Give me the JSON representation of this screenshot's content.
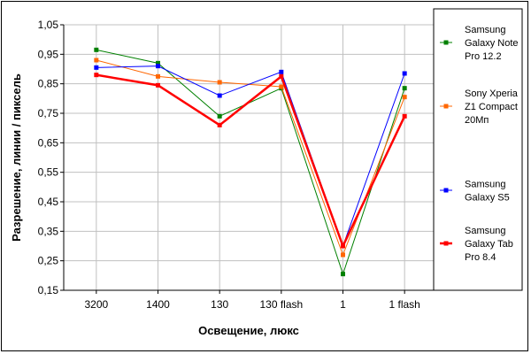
{
  "chart_data": {
    "type": "line",
    "title": "",
    "xlabel": "Освещение, люкс",
    "ylabel": "Разрешение, линии / пиксель",
    "categories": [
      "3200",
      "1400",
      "130",
      "130 flash",
      "1",
      "1 flash"
    ],
    "ylim": [
      0.15,
      1.05
    ],
    "yticks": [
      "0,15",
      "0,25",
      "0,35",
      "0,45",
      "0,55",
      "0,65",
      "0,75",
      "0,85",
      "0,95",
      "1,05"
    ],
    "grid": true,
    "legend_position": "right",
    "series": [
      {
        "name": "Samsung Galaxy Note Pro 12.2",
        "legend_lines": [
          "Samsung",
          "Galaxy Note",
          "Pro 12.2"
        ],
        "color": "#008000",
        "values": [
          0.965,
          0.92,
          0.74,
          0.835,
          0.205,
          0.835
        ]
      },
      {
        "name": "Sony Xperia Z1 Compact 20Мп",
        "legend_lines": [
          "Sony Xperia",
          "Z1 Compact",
          "20Мп"
        ],
        "color": "#FF6600",
        "values": [
          0.93,
          0.875,
          0.855,
          0.84,
          0.27,
          0.805
        ]
      },
      {
        "name": "Samsung Galaxy S5",
        "legend_lines": [
          "Samsung",
          "Galaxy S5"
        ],
        "color": "#0000FF",
        "values": [
          0.905,
          0.91,
          0.81,
          0.89,
          0.3,
          0.885
        ]
      },
      {
        "name": "Samsung Galaxy Tab Pro 8.4",
        "legend_lines": [
          "Samsung",
          "Galaxy Tab",
          "Pro 8.4"
        ],
        "color": "#FF0000",
        "values": [
          0.88,
          0.845,
          0.71,
          0.875,
          0.3,
          0.74
        ]
      }
    ]
  }
}
